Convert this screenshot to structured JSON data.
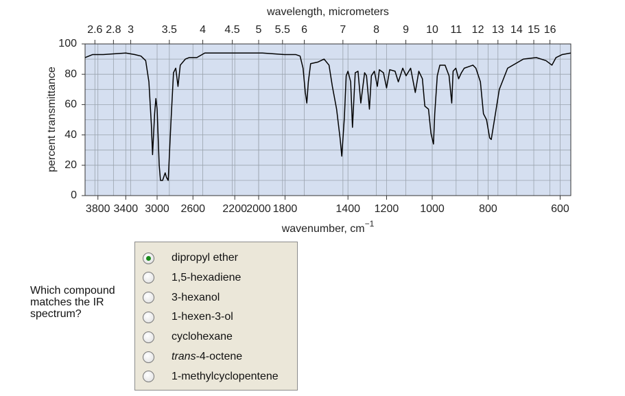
{
  "chart_data": {
    "type": "line",
    "x2label": "wavelength, micrometers",
    "xlabel": {
      "text": "wavenumber, cm",
      "superscript": "−1"
    },
    "ylabel": "percent transmittance",
    "xscale": "log",
    "x2scale": "log",
    "xlim": [
      4000,
      575
    ],
    "x2lim": [
      2.5,
      17.39
    ],
    "ylim": [
      0,
      100
    ],
    "xticks": [
      3800,
      3400,
      3000,
      2600,
      2200,
      2000,
      1800,
      1400,
      1200,
      1000,
      800,
      600
    ],
    "x2ticks": [
      2.6,
      2.8,
      3,
      3.5,
      4,
      4.5,
      5,
      5.5,
      6,
      7,
      8,
      9,
      10,
      11,
      12,
      13,
      14,
      15,
      16
    ],
    "yticks": [
      0,
      20,
      40,
      60,
      80,
      100
    ],
    "y_minor_ticks": [
      10,
      30,
      50,
      70,
      90
    ],
    "grid": true,
    "color": "#000000",
    "x": [
      4000,
      3880,
      3800,
      3720,
      3400,
      3280,
      3200,
      3140,
      3100,
      3070,
      3055,
      3030,
      3015,
      3000,
      2975,
      2960,
      2935,
      2905,
      2890,
      2870,
      2840,
      2810,
      2785,
      2760,
      2735,
      2680,
      2640,
      2560,
      2480,
      2200,
      1970,
      1805,
      1725,
      1695,
      1675,
      1660,
      1650,
      1640,
      1625,
      1580,
      1540,
      1510,
      1490,
      1465,
      1445,
      1435,
      1420,
      1410,
      1400,
      1385,
      1375,
      1360,
      1345,
      1330,
      1310,
      1300,
      1285,
      1275,
      1260,
      1245,
      1235,
      1215,
      1200,
      1185,
      1160,
      1145,
      1125,
      1110,
      1090,
      1070,
      1055,
      1040,
      1030,
      1015,
      1005,
      995,
      990,
      980,
      970,
      950,
      935,
      925,
      920,
      910,
      900,
      890,
      880,
      865,
      850,
      840,
      825,
      815,
      805,
      795,
      790,
      780,
      765,
      740,
      695,
      660,
      635,
      620,
      610,
      595,
      575
    ],
    "values": [
      91,
      93,
      93,
      93,
      94,
      93,
      92,
      89,
      75,
      47,
      27,
      54,
      64,
      57,
      20,
      10,
      10,
      15,
      12,
      10,
      47,
      81,
      84,
      72,
      86,
      90,
      91,
      91,
      94,
      94,
      94,
      93,
      93,
      92,
      84,
      68,
      61,
      75,
      87,
      88,
      90,
      86,
      72,
      57,
      38,
      26,
      52,
      79,
      82,
      75,
      45,
      81,
      82,
      61,
      81,
      79,
      57,
      79,
      82,
      72,
      83,
      81,
      71,
      83,
      82,
      75,
      84,
      79,
      84,
      68,
      82,
      77,
      59,
      57,
      41,
      34,
      54,
      79,
      86,
      86,
      79,
      61,
      82,
      84,
      77,
      81,
      84,
      85,
      86,
      84,
      75,
      54,
      50,
      38,
      37,
      50,
      70,
      84,
      90,
      91,
      89,
      86,
      91,
      93,
      94
    ]
  },
  "quiz": {
    "question": "Which compound matches the IR spectrum?",
    "selected": 0,
    "options": [
      "dipropyl ether",
      "1,5-hexadiene",
      "3-hexanol",
      "1-hexen-3-ol",
      "cyclohexane",
      {
        "italic": "trans",
        "rest": "-4-octene"
      },
      "1-methylcyclopentene"
    ]
  }
}
